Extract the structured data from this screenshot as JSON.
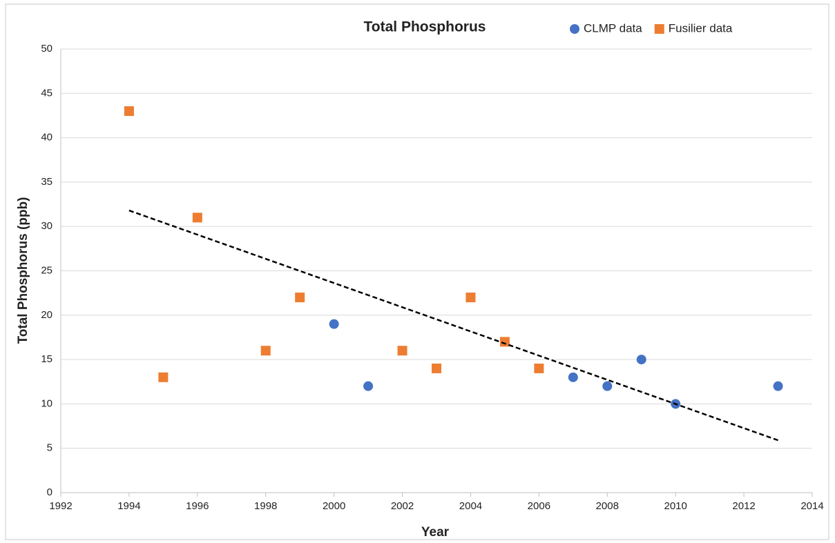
{
  "chart_data": {
    "type": "scatter",
    "title": "Total Phosphorus",
    "x_label": "Year",
    "y_label": "Total Phosphorus (ppb)",
    "xlim": [
      1992,
      2014
    ],
    "xticks": [
      1992,
      1994,
      1996,
      1998,
      2000,
      2002,
      2004,
      2006,
      2008,
      2010,
      2012,
      2014
    ],
    "ylim": [
      0,
      50
    ],
    "yticks": [
      0,
      5,
      10,
      15,
      20,
      25,
      30,
      35,
      40,
      45,
      50
    ],
    "grid": true,
    "legend": "top-right",
    "series": [
      {
        "name": "CLMP data",
        "color": "#4472c4",
        "marker": "circle",
        "x": [
          2000,
          2001,
          2007,
          2008,
          2009,
          2010,
          2013
        ],
        "values": [
          19,
          12,
          13,
          12,
          15,
          10,
          12
        ]
      },
      {
        "name": "Fusilier data",
        "color": "#ed7d31",
        "marker": "square",
        "x": [
          1994,
          1995,
          1996,
          1998,
          1999,
          2002,
          2003,
          2004,
          2005,
          2006
        ],
        "values": [
          43,
          13,
          31,
          16,
          22,
          16,
          14,
          22,
          17,
          14
        ]
      }
    ],
    "trendline": {
      "color": "#000000",
      "style": "dashed",
      "x": [
        1994,
        2013
      ],
      "values": [
        31.8,
        5.9
      ]
    }
  }
}
